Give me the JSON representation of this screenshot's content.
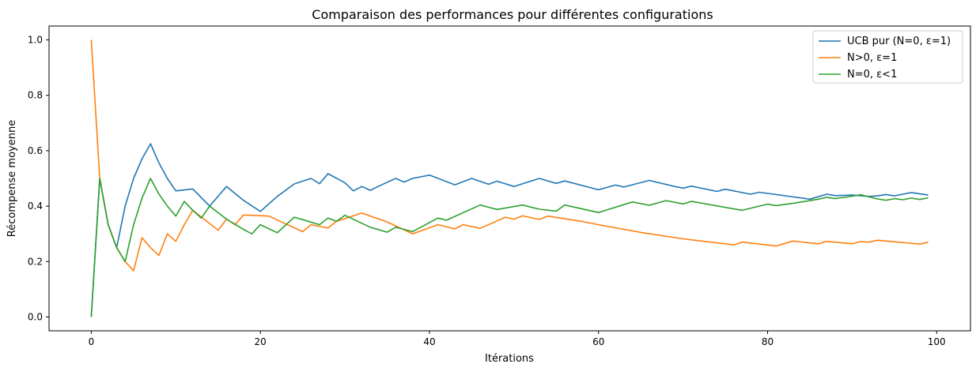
{
  "chart_data": {
    "type": "line",
    "title": "Comparaison des performances pour différentes configurations",
    "xlabel": "Itérations",
    "ylabel": "Récompense moyenne",
    "xlim": [
      -5,
      104
    ],
    "ylim": [
      -0.05,
      1.05
    ],
    "xticks": [
      0,
      20,
      40,
      60,
      80,
      100
    ],
    "xtick_labels": [
      "0",
      "20",
      "40",
      "60",
      "80",
      "100"
    ],
    "yticks": [
      0.0,
      0.2,
      0.4,
      0.6,
      0.8,
      1.0
    ],
    "ytick_labels": [
      "0.0",
      "0.2",
      "0.4",
      "0.6",
      "0.8",
      "1.0"
    ],
    "grid": false,
    "legend_position": "top-right",
    "series": [
      {
        "name": "UCB pur (N=0, ε=1)",
        "color": "#1f77b4",
        "x": [
          0,
          1,
          2,
          3,
          4,
          5,
          6,
          7,
          8,
          9,
          10,
          12,
          14,
          16,
          18,
          20,
          22,
          24,
          26,
          27,
          28,
          30,
          31,
          32,
          33,
          34,
          36,
          37,
          38,
          40,
          43,
          45,
          47,
          48,
          50,
          53,
          55,
          56,
          60,
          62,
          63,
          66,
          69,
          70,
          71,
          74,
          75,
          78,
          79,
          85,
          87,
          88,
          90,
          92,
          93,
          94,
          95,
          96,
          97,
          99
        ],
        "y": [
          0.0,
          0.5,
          0.333,
          0.25,
          0.4,
          0.5,
          0.571,
          0.625,
          0.556,
          0.5,
          0.455,
          0.462,
          0.4,
          0.471,
          0.421,
          0.381,
          0.435,
          0.48,
          0.5,
          0.481,
          0.517,
          0.484,
          0.455,
          0.471,
          0.457,
          0.472,
          0.5,
          0.487,
          0.5,
          0.512,
          0.477,
          0.5,
          0.479,
          0.49,
          0.471,
          0.5,
          0.482,
          0.491,
          0.459,
          0.476,
          0.469,
          0.493,
          0.471,
          0.465,
          0.472,
          0.453,
          0.461,
          0.443,
          0.45,
          0.425,
          0.443,
          0.438,
          0.44,
          0.435,
          0.437,
          0.442,
          0.437,
          0.443,
          0.449,
          0.44
        ]
      },
      {
        "name": "N>0, ε=1",
        "color": "#ff7f0e",
        "x": [
          0,
          1,
          2,
          3,
          4,
          5,
          6,
          7,
          8,
          9,
          10,
          11,
          12,
          15,
          16,
          17,
          18,
          21,
          25,
          26,
          28,
          29,
          30,
          32,
          35,
          38,
          41,
          43,
          44,
          46,
          49,
          50,
          51,
          53,
          54,
          58,
          60,
          65,
          70,
          76,
          77,
          81,
          83,
          86,
          87,
          90,
          91,
          92,
          93,
          98,
          99
        ],
        "y": [
          1.0,
          0.5,
          0.333,
          0.25,
          0.2,
          0.167,
          0.286,
          0.25,
          0.222,
          0.3,
          0.273,
          0.333,
          0.385,
          0.313,
          0.353,
          0.333,
          0.368,
          0.364,
          0.308,
          0.333,
          0.321,
          0.345,
          0.355,
          0.375,
          0.343,
          0.3,
          0.333,
          0.318,
          0.333,
          0.32,
          0.36,
          0.353,
          0.365,
          0.352,
          0.364,
          0.345,
          0.333,
          0.305,
          0.282,
          0.26,
          0.27,
          0.256,
          0.274,
          0.264,
          0.273,
          0.264,
          0.272,
          0.27,
          0.277,
          0.263,
          0.27
        ]
      },
      {
        "name": "N=0, ε<1",
        "color": "#2ca02c",
        "x": [
          0,
          1,
          2,
          3,
          4,
          5,
          6,
          7,
          8,
          9,
          10,
          11,
          12,
          13,
          14,
          16,
          18,
          19,
          20,
          22,
          24,
          27,
          28,
          29,
          30,
          33,
          35,
          36,
          38,
          41,
          42,
          46,
          47,
          48,
          51,
          53,
          55,
          56,
          60,
          64,
          66,
          68,
          70,
          71,
          77,
          79,
          80,
          81,
          83,
          85,
          86,
          87,
          88,
          90,
          91,
          93,
          94,
          95,
          96,
          97,
          98,
          99
        ],
        "y": [
          0.0,
          0.5,
          0.333,
          0.25,
          0.2,
          0.333,
          0.429,
          0.5,
          0.444,
          0.4,
          0.364,
          0.417,
          0.385,
          0.357,
          0.4,
          0.353,
          0.316,
          0.3,
          0.333,
          0.304,
          0.36,
          0.333,
          0.357,
          0.345,
          0.367,
          0.324,
          0.306,
          0.324,
          0.308,
          0.357,
          0.349,
          0.404,
          0.396,
          0.388,
          0.404,
          0.389,
          0.382,
          0.404,
          0.377,
          0.415,
          0.403,
          0.42,
          0.408,
          0.417,
          0.385,
          0.4,
          0.407,
          0.402,
          0.41,
          0.42,
          0.425,
          0.432,
          0.427,
          0.436,
          0.441,
          0.426,
          0.421,
          0.427,
          0.423,
          0.429,
          0.424,
          0.43
        ]
      }
    ]
  }
}
